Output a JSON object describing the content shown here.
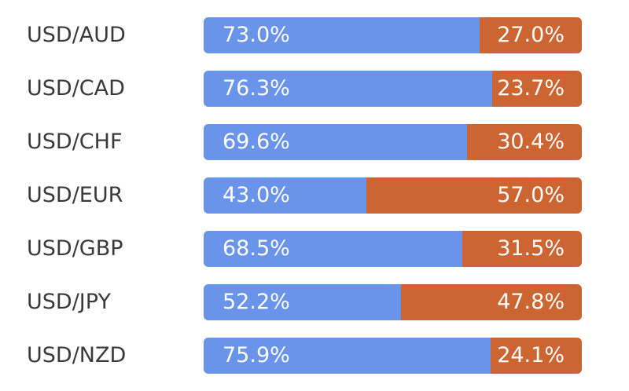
{
  "chart_data": {
    "type": "bar",
    "orientation": "horizontal",
    "stacked": true,
    "percent_stacked": true,
    "categories": [
      "USD/AUD",
      "USD/CAD",
      "USD/CHF",
      "USD/EUR",
      "USD/GBP",
      "USD/JPY",
      "USD/NZD"
    ],
    "series": [
      {
        "color": "#6a93ea",
        "values": [
          73.0,
          76.3,
          69.6,
          43.0,
          68.5,
          52.2,
          75.9
        ],
        "labels": [
          "73.0%",
          "76.3%",
          "69.6%",
          "43.0%",
          "68.5%",
          "52.2%",
          "75.9%"
        ]
      },
      {
        "color": "#cc6532",
        "values": [
          27.0,
          23.7,
          30.4,
          57.0,
          31.5,
          47.8,
          24.1
        ],
        "labels": [
          "27.0%",
          "23.7%",
          "30.4%",
          "57.0%",
          "31.5%",
          "47.8%",
          "24.1%"
        ]
      }
    ],
    "xlim": [
      0,
      100
    ],
    "grid": false,
    "legend": "none"
  }
}
